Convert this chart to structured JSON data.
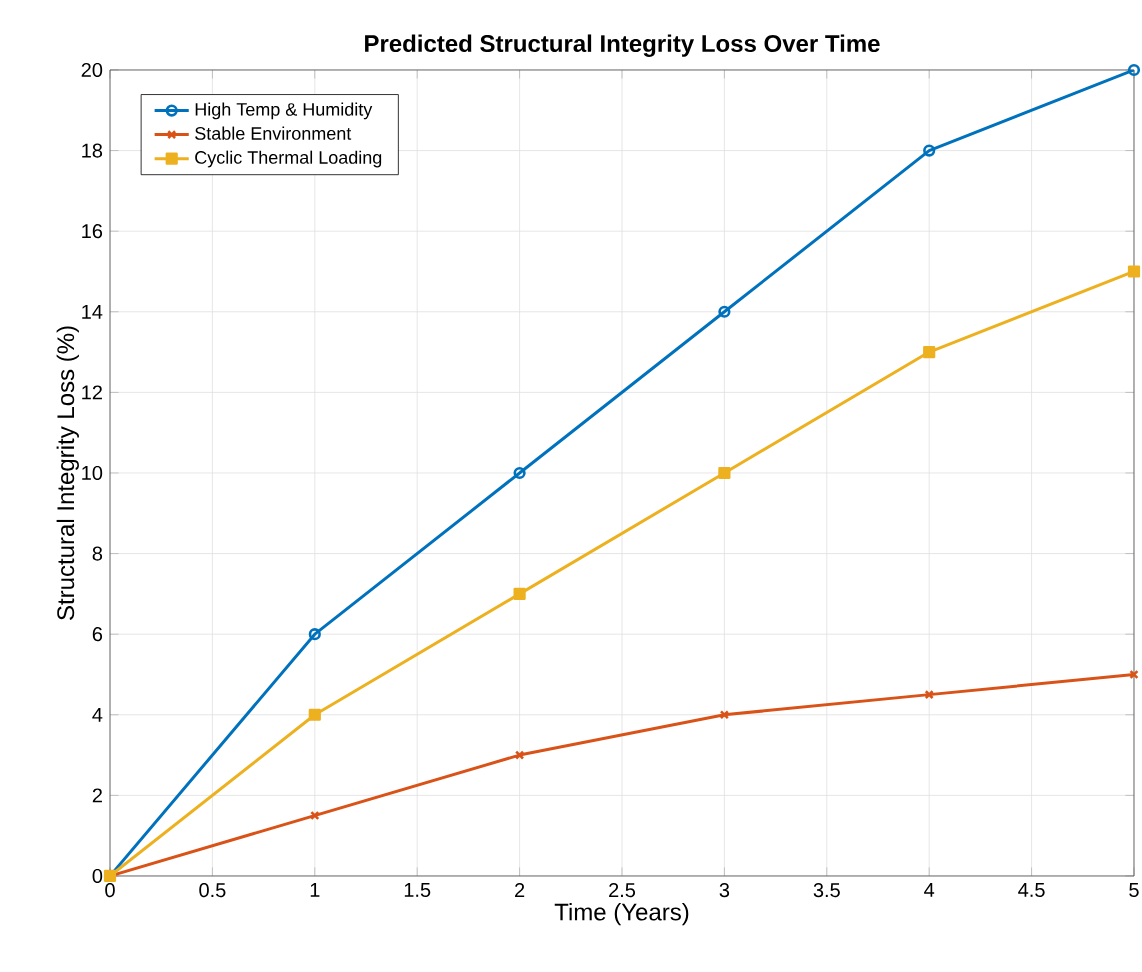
{
  "chart_data": {
    "type": "line",
    "title": "Predicted Structural Integrity Loss Over Time",
    "xlabel": "Time (Years)",
    "ylabel": "Structural Integrity Loss (%)",
    "x": [
      0,
      1,
      2,
      3,
      4,
      5
    ],
    "series": [
      {
        "name": "High Temp & Humidity",
        "color": "#0072bd",
        "marker": "circle",
        "values": [
          0,
          6,
          10,
          14,
          18,
          20
        ]
      },
      {
        "name": "Stable Environment",
        "color": "#d95319",
        "marker": "cross",
        "values": [
          0,
          1.5,
          3,
          4,
          4.5,
          5
        ]
      },
      {
        "name": "Cyclic Thermal Loading",
        "color": "#edb120",
        "marker": "square",
        "values": [
          0,
          4,
          7,
          10,
          13,
          15
        ]
      }
    ],
    "xlim": [
      0,
      5
    ],
    "xticks": [
      0,
      0.5,
      1,
      1.5,
      2,
      2.5,
      3,
      3.5,
      4,
      4.5,
      5
    ],
    "ylim": [
      0,
      20
    ],
    "yticks": [
      0,
      2,
      4,
      6,
      8,
      10,
      12,
      14,
      16,
      18,
      20
    ],
    "grid": true,
    "legend": "top left",
    "line_style": "solid"
  }
}
